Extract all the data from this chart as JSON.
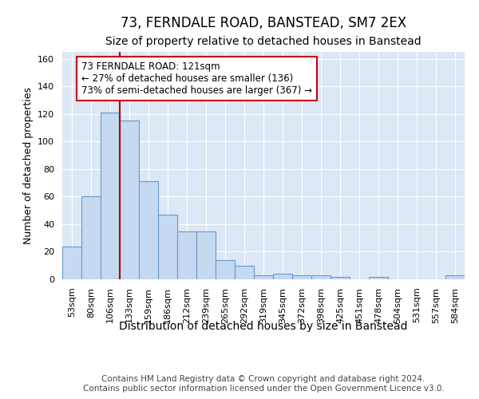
{
  "title": "73, FERNDALE ROAD, BANSTEAD, SM7 2EX",
  "subtitle": "Size of property relative to detached houses in Banstead",
  "xlabel": "Distribution of detached houses by size in Banstead",
  "ylabel": "Number of detached properties",
  "categories": [
    "53sqm",
    "80sqm",
    "106sqm",
    "133sqm",
    "159sqm",
    "186sqm",
    "212sqm",
    "239sqm",
    "265sqm",
    "292sqm",
    "319sqm",
    "345sqm",
    "372sqm",
    "398sqm",
    "425sqm",
    "451sqm",
    "478sqm",
    "504sqm",
    "531sqm",
    "557sqm",
    "584sqm"
  ],
  "values": [
    24,
    60,
    121,
    115,
    71,
    47,
    35,
    35,
    14,
    10,
    3,
    4,
    3,
    3,
    2,
    0,
    2,
    0,
    0,
    0,
    3
  ],
  "bar_color": "#c5d9f0",
  "bar_edge_color": "#6699cc",
  "background_color": "#dce8f5",
  "vline_x_index": 2.5,
  "annotation_box_color": "#cc0000",
  "vline_color": "#aa0000",
  "ylim": [
    0,
    165
  ],
  "yticks": [
    0,
    20,
    40,
    60,
    80,
    100,
    120,
    140,
    160
  ],
  "footer_text": "Contains HM Land Registry data © Crown copyright and database right 2024.\nContains public sector information licensed under the Open Government Licence v3.0.",
  "title_fontsize": 12,
  "subtitle_fontsize": 10,
  "xlabel_fontsize": 10,
  "ylabel_fontsize": 9,
  "tick_fontsize": 8,
  "annotation_fontsize": 8.5,
  "footer_fontsize": 7.5,
  "ann_line1": "73 FERNDALE ROAD: 121sqm",
  "ann_line2": "← 27% of detached houses are smaller (136)",
  "ann_line3": "73% of semi-detached houses are larger (367) →"
}
